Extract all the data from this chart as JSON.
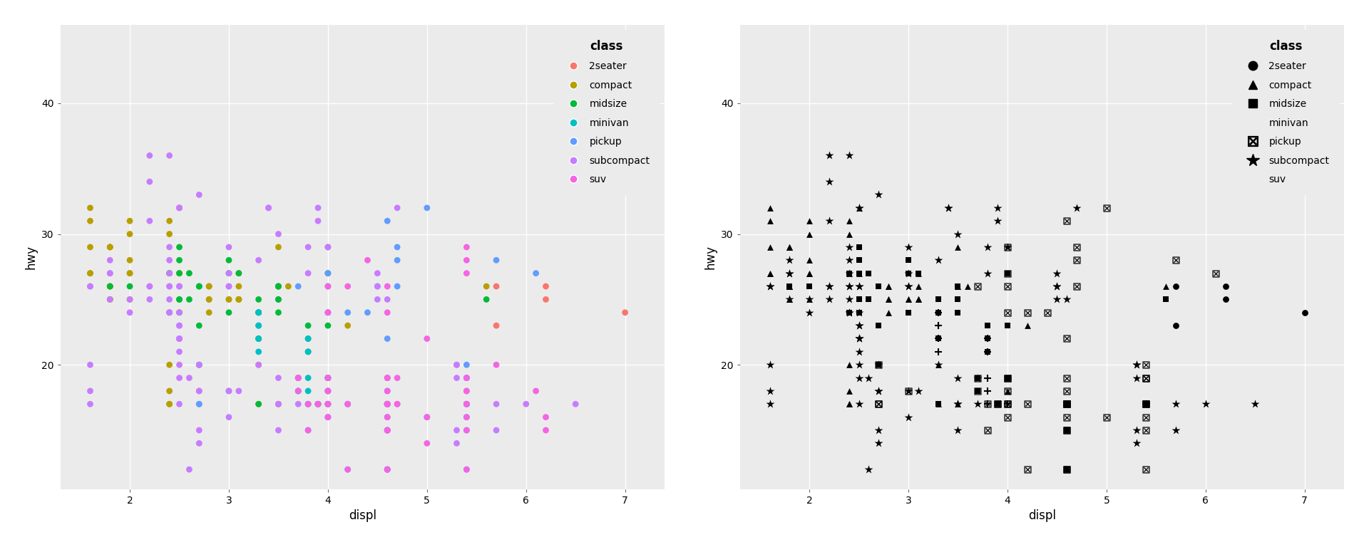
{
  "classes": {
    "2seater": {
      "displ": [
        5.7,
        5.7,
        6.2,
        6.2,
        7.0
      ],
      "hwy": [
        26,
        23,
        26,
        25,
        24
      ]
    },
    "compact": {
      "displ": [
        1.8,
        1.8,
        2.0,
        2.0,
        2.8,
        2.8,
        3.1,
        1.8,
        1.8,
        2.0,
        2.0,
        2.8,
        2.8,
        3.1,
        3.1,
        2.8,
        3.1,
        4.2,
        2.4,
        2.4,
        3.1,
        3.5,
        3.6,
        1.8,
        2.0,
        2.4,
        2.5,
        2.5,
        3.5,
        3.5,
        3.0,
        3.0,
        3.5,
        3.3,
        3.3,
        4.0,
        5.6,
        1.6,
        1.6,
        1.6,
        1.6,
        1.6,
        1.8,
        1.8,
        1.8,
        2.0,
        2.4,
        2.4,
        2.4,
        2.4
      ],
      "hwy": [
        29,
        29,
        31,
        30,
        26,
        26,
        27,
        26,
        25,
        28,
        27,
        25,
        25,
        25,
        25,
        24,
        25,
        23,
        27,
        30,
        26,
        29,
        26,
        29,
        27,
        31,
        32,
        27,
        26,
        26,
        25,
        25,
        17,
        17,
        20,
        18,
        26,
        29,
        27,
        31,
        32,
        27,
        26,
        26,
        25,
        25,
        17,
        17,
        20,
        18
      ]
    },
    "midsize": {
      "displ": [
        2.4,
        3.0,
        3.3,
        3.3,
        3.3,
        3.3,
        3.3,
        3.8,
        3.8,
        3.8,
        4.0,
        2.5,
        2.5,
        3.5,
        3.5,
        3.0,
        3.0,
        3.5,
        3.3,
        3.3,
        4.0,
        5.6,
        3.7,
        3.7,
        3.9,
        3.9,
        4.0,
        4.0,
        4.6,
        4.6,
        4.6,
        4.6,
        5.4,
        1.8,
        2.0,
        2.4,
        2.5,
        2.5,
        2.5,
        2.5,
        2.6,
        2.6,
        2.7,
        2.7,
        2.7,
        2.7,
        3.1,
        3.5,
        3.5
      ],
      "hwy": [
        24,
        24,
        22,
        22,
        24,
        24,
        17,
        22,
        21,
        23,
        23,
        29,
        27,
        26,
        26,
        27,
        28,
        25,
        25,
        24,
        27,
        25,
        19,
        18,
        17,
        17,
        19,
        19,
        12,
        17,
        15,
        17,
        17,
        26,
        26,
        27,
        28,
        25,
        25,
        24,
        27,
        25,
        26,
        23,
        26,
        20,
        27,
        25,
        24
      ]
    },
    "minivan": {
      "displ": [
        3.3,
        3.8,
        3.8,
        3.8,
        4.0,
        3.3,
        3.3,
        3.3,
        3.3,
        3.8,
        3.8
      ],
      "hwy": [
        24,
        19,
        18,
        17,
        17,
        22,
        21,
        23,
        23,
        22,
        21
      ]
    },
    "pickup": {
      "displ": [
        3.7,
        3.7,
        3.9,
        3.9,
        4.0,
        4.0,
        4.6,
        4.6,
        4.6,
        4.6,
        5.4,
        5.4,
        5.4,
        4.0,
        4.0,
        4.6,
        5.0,
        4.2,
        4.2,
        4.6,
        4.6,
        4.6,
        5.4,
        5.4,
        3.8,
        3.8,
        4.0,
        4.0,
        4.6,
        4.6,
        4.6,
        4.6,
        5.4,
        2.7,
        2.7,
        2.7,
        3.0,
        3.7,
        4.0,
        4.7,
        4.7,
        4.7,
        5.7,
        6.1,
        4.0,
        4.2,
        4.4,
        4.6,
        5.4,
        5.4,
        5.4,
        4.0,
        4.0,
        4.6,
        5.0
      ],
      "hwy": [
        19,
        18,
        17,
        17,
        19,
        19,
        12,
        17,
        15,
        17,
        17,
        12,
        17,
        16,
        18,
        15,
        16,
        12,
        17,
        17,
        16,
        12,
        15,
        16,
        17,
        15,
        17,
        17,
        18,
        17,
        19,
        17,
        19,
        17,
        17,
        20,
        18,
        26,
        26,
        28,
        26,
        29,
        28,
        27,
        24,
        24,
        24,
        22,
        19,
        20,
        17,
        29,
        27,
        31,
        32
      ]
    },
    "subcompact": {
      "displ": [
        5.3,
        5.3,
        5.3,
        5.7,
        6.0,
        5.3,
        5.3,
        5.7,
        6.5,
        2.5,
        2.5,
        2.2,
        2.2,
        2.5,
        2.5,
        2.5,
        2.5,
        2.5,
        2.5,
        2.7,
        2.7,
        3.4,
        3.4,
        4.0,
        4.7,
        2.2,
        2.2,
        2.4,
        2.4,
        3.0,
        3.0,
        3.5,
        2.2,
        2.2,
        2.4,
        2.4,
        3.0,
        3.0,
        3.3,
        1.8,
        2.0,
        2.4,
        2.5,
        2.5,
        2.5,
        2.5,
        2.6,
        2.6,
        2.7,
        2.7,
        2.7,
        2.7,
        3.1,
        3.5,
        3.5,
        3.0,
        3.0,
        3.5,
        3.5,
        3.7,
        3.7,
        3.8,
        3.8,
        3.9,
        3.9,
        4.5,
        4.5,
        4.5,
        4.5,
        4.6,
        5.4,
        1.6,
        1.6,
        1.6,
        1.6,
        1.6,
        1.8,
        1.8,
        1.8,
        2.0,
        2.4,
        2.4,
        2.4,
        2.4,
        2.5,
        2.5,
        3.3
      ],
      "hwy": [
        20,
        15,
        20,
        17,
        17,
        19,
        14,
        15,
        17,
        32,
        32,
        26,
        25,
        26,
        24,
        21,
        22,
        23,
        22,
        20,
        33,
        32,
        32,
        29,
        32,
        34,
        36,
        36,
        29,
        26,
        27,
        30,
        31,
        26,
        26,
        28,
        26,
        29,
        28,
        27,
        24,
        24,
        22,
        19,
        20,
        17,
        12,
        19,
        18,
        14,
        15,
        18,
        18,
        15,
        17,
        16,
        18,
        17,
        19,
        19,
        17,
        29,
        27,
        31,
        32,
        27,
        26,
        26,
        25,
        25,
        17,
        17,
        20,
        18,
        26,
        26,
        27,
        28,
        25,
        25,
        24,
        27,
        25,
        26,
        23,
        26,
        20
      ]
    },
    "suv": {
      "displ": [
        4.2,
        3.7,
        3.7,
        3.9,
        3.9,
        4.0,
        4.0,
        4.6,
        4.6,
        4.6,
        4.6,
        5.4,
        5.4,
        5.4,
        4.0,
        4.0,
        4.6,
        5.0,
        4.2,
        4.2,
        4.6,
        4.6,
        4.6,
        5.4,
        5.4,
        3.8,
        3.8,
        4.0,
        4.0,
        4.6,
        4.6,
        4.6,
        4.6,
        5.4,
        4.7,
        4.7,
        4.7,
        5.7,
        6.1,
        4.0,
        4.2,
        4.4,
        4.6,
        5.4,
        5.4,
        5.4,
        4.0,
        4.0,
        4.6,
        5.0,
        4.6,
        5.0,
        4.6,
        5.4,
        5.4,
        6.2,
        6.2,
        4.0,
        4.0
      ],
      "hwy": [
        17,
        19,
        18,
        17,
        17,
        19,
        19,
        12,
        17,
        15,
        17,
        17,
        12,
        17,
        16,
        18,
        15,
        16,
        12,
        17,
        17,
        16,
        12,
        15,
        16,
        17,
        15,
        17,
        17,
        18,
        17,
        19,
        17,
        19,
        19,
        17,
        17,
        20,
        18,
        26,
        26,
        28,
        26,
        29,
        28,
        27,
        24,
        24,
        24,
        22,
        19,
        14,
        15,
        18,
        18,
        15,
        16,
        16,
        18
      ]
    }
  },
  "class_colors": {
    "2seater": "#F8766D",
    "compact": "#B79F00",
    "midsize": "#00BA38",
    "minivan": "#00BFC4",
    "pickup": "#619CFF",
    "subcompact": "#C77CFF",
    "suv": "#F564E3"
  },
  "class_order": [
    "2seater",
    "compact",
    "midsize",
    "minivan",
    "pickup",
    "subcompact",
    "suv"
  ],
  "bg_color": "#EBEBEB",
  "grid_color": "white",
  "xlabel": "displ",
  "ylabel": "hwy",
  "legend_title": "class",
  "xlim": [
    1.3,
    7.4
  ],
  "ylim": [
    10.5,
    46
  ],
  "xticks": [
    2,
    3,
    4,
    5,
    6,
    7
  ],
  "yticks": [
    20,
    30,
    40
  ],
  "marker_size": 40,
  "fontsize_axis_label": 12,
  "fontsize_tick": 10,
  "fontsize_legend_title": 12,
  "fontsize_legend": 10
}
